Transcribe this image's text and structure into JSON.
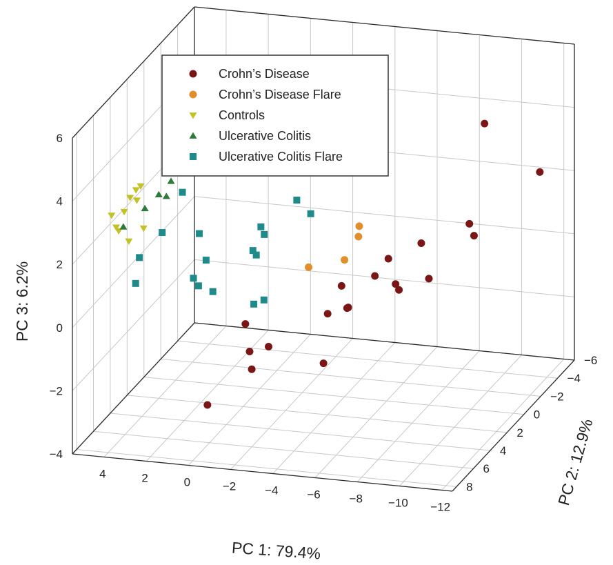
{
  "chart_data": {
    "type": "scatter",
    "projection": "3d",
    "xlabel": "PC 1: 79.4%",
    "ylabel": "PC 2: 12.9%",
    "zlabel": "PC 3: 6.2%",
    "xlim": [
      5.5,
      -12.5
    ],
    "ylim": [
      -6,
      8.5
    ],
    "zlim": [
      -4,
      6
    ],
    "xticks": [
      "4",
      "2",
      "0",
      "−2",
      "−4",
      "−6",
      "−8",
      "−10",
      "−12"
    ],
    "yticks": [
      "−6",
      "−4",
      "−2",
      "0",
      "2",
      "4",
      "6",
      "8"
    ],
    "zticks": [
      "6",
      "4",
      "2",
      "0",
      "−2",
      "−4"
    ],
    "grid": true,
    "legend_position": "top-left",
    "colors": {
      "crohns": "#7b1616",
      "crohns_flare": "#e08f2c",
      "controls": "#c2c227",
      "uc": "#2d7a3a",
      "uc_flare": "#1f8a8a"
    },
    "series": [
      {
        "name": "Crohn’s Disease",
        "marker": "circle",
        "color_key": "crohns",
        "points": [
          [
            -9.0,
            -4.1,
            3.8
          ],
          [
            -11.7,
            -3.9,
            2.5
          ],
          [
            -9.2,
            -1.8,
            1.3
          ],
          [
            -9.5,
            -1.6,
            1.0
          ],
          [
            -7.0,
            -1.6,
            0.6
          ],
          [
            -8.0,
            0.0,
            0.0
          ],
          [
            -6.2,
            0.3,
            0.6
          ],
          [
            -5.8,
            0.9,
            0.2
          ],
          [
            -6.9,
            0.8,
            -0.2
          ],
          [
            -6.9,
            1.2,
            0.1
          ],
          [
            -5.0,
            2.2,
            -0.5
          ],
          [
            -4.9,
            1.8,
            -0.6
          ],
          [
            -4.5,
            1.6,
            0.0
          ],
          [
            -4.0,
            2.0,
            -0.8
          ],
          [
            -4.8,
            4.5,
            -1.6
          ],
          [
            -2.0,
            4.0,
            -1.4
          ],
          [
            -1.5,
            5.0,
            -1.3
          ],
          [
            -1.8,
            5.5,
            -1.7
          ],
          [
            -1.1,
            4.5,
            -0.6
          ],
          [
            -0.3,
            7.0,
            -2.5
          ]
        ]
      },
      {
        "name": "Crohn’s Disease Flare",
        "marker": "circle",
        "color_key": "crohns_flare",
        "points": [
          [
            -4.9,
            0.5,
            1.6
          ],
          [
            -4.9,
            0.6,
            1.3
          ],
          [
            -4.6,
            1.5,
            0.8
          ],
          [
            -2.7,
            1.0,
            0.3
          ]
        ]
      },
      {
        "name": "Controls",
        "marker": "triangle-down",
        "color_key": "controls",
        "points": [
          [
            2.8,
            2.0,
            4.1
          ],
          [
            3.3,
            2.6,
            4.1
          ],
          [
            3.2,
            3.0,
            4.0
          ],
          [
            4.3,
            3.4,
            3.1
          ],
          [
            4.6,
            3.2,
            2.9
          ],
          [
            4.8,
            3.4,
            2.7
          ],
          [
            4.4,
            3.6,
            2.7
          ],
          [
            5.0,
            3.6,
            2.3
          ],
          [
            5.1,
            4.3,
            2.0
          ],
          [
            5.4,
            4.1,
            2.3
          ],
          [
            5.1,
            4.0,
            1.8
          ],
          [
            4.5,
            4.3,
            1.6
          ],
          [
            4.0,
            3.8,
            1.9
          ]
        ]
      },
      {
        "name": "Ulcerative Colitis",
        "marker": "triangle-up",
        "color_key": "uc",
        "points": [
          [
            3.2,
            2.0,
            3.3
          ],
          [
            3.3,
            2.3,
            3.0
          ],
          [
            3.4,
            2.6,
            2.6
          ],
          [
            3.8,
            2.5,
            2.6
          ],
          [
            4.1,
            3.4,
            2.4
          ],
          [
            4.8,
            4.2,
            2.0
          ]
        ]
      },
      {
        "name": "Ulcerative Colitis Flare",
        "marker": "square",
        "color_key": "uc_flare",
        "points": [
          [
            -2.8,
            1.0,
            2.0
          ],
          [
            -1.9,
            0.4,
            2.2
          ],
          [
            -0.4,
            0.9,
            1.4
          ],
          [
            -0.6,
            1.0,
            1.2
          ],
          [
            -0.5,
            2.1,
            1.0
          ],
          [
            -0.7,
            2.2,
            0.9
          ],
          [
            -1.3,
            4.0,
            -0.1
          ],
          [
            -1.7,
            3.8,
            0.0
          ],
          [
            0.6,
            4.1,
            0.2
          ],
          [
            1.2,
            4.3,
            0.4
          ],
          [
            1.4,
            2.9,
            0.8
          ],
          [
            2.0,
            2.2,
            1.4
          ],
          [
            3.0,
            1.7,
            2.5
          ],
          [
            3.4,
            3.1,
            1.6
          ],
          [
            1.6,
            3.9,
            0.5
          ],
          [
            4.4,
            3.3,
            0.8
          ],
          [
            3.9,
            5.0,
            0.5
          ]
        ]
      }
    ]
  }
}
